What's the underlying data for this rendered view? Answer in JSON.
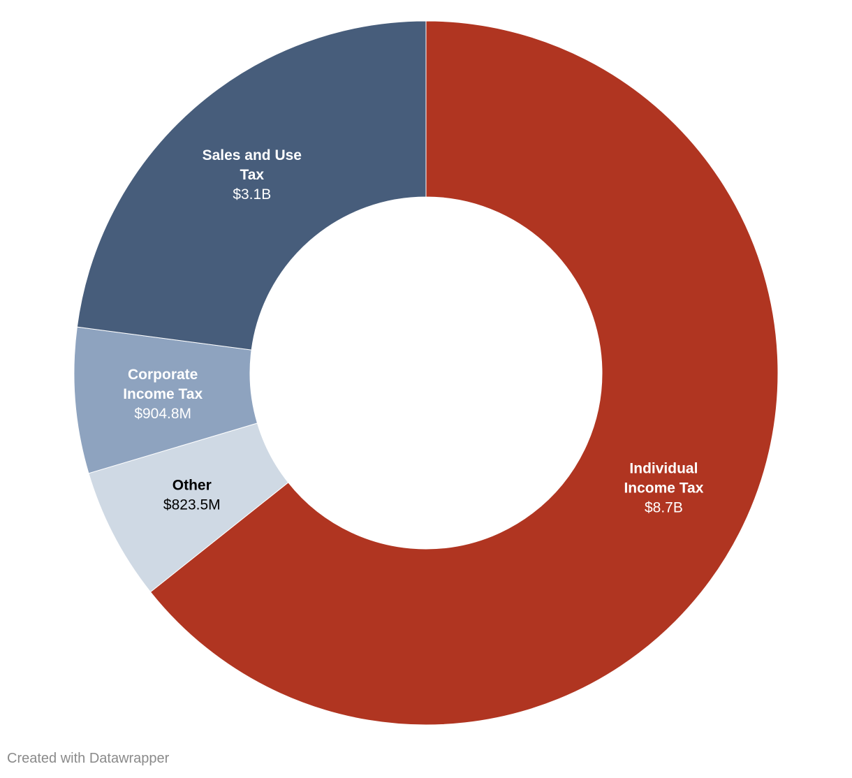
{
  "chart_data": {
    "type": "pie",
    "variant": "donut",
    "start": "12 o'clock, clockwise",
    "slices": [
      {
        "label": "Individual Income Tax",
        "lines": [
          "Individual",
          "Income Tax"
        ],
        "value_label": "$8.7B",
        "value": 8.7,
        "color": "#b03521",
        "label_color": "#ffffff"
      },
      {
        "label": "Other",
        "lines": [
          "Other"
        ],
        "value_label": "$823.5M",
        "value": 0.8235,
        "color": "#cfd9e4",
        "label_color": "#000000"
      },
      {
        "label": "Corporate Income Tax",
        "lines": [
          "Corporate",
          "Income Tax"
        ],
        "value_label": "$904.8M",
        "value": 0.9048,
        "color": "#8ea3bf",
        "label_color": "#ffffff"
      },
      {
        "label": "Sales and Use Tax",
        "lines": [
          "Sales and Use",
          "Tax"
        ],
        "value_label": "$3.1B",
        "value": 3.1,
        "color": "#475d7b",
        "label_color": "#ffffff"
      }
    ]
  },
  "footer": {
    "credit": "Created with Datawrapper"
  }
}
